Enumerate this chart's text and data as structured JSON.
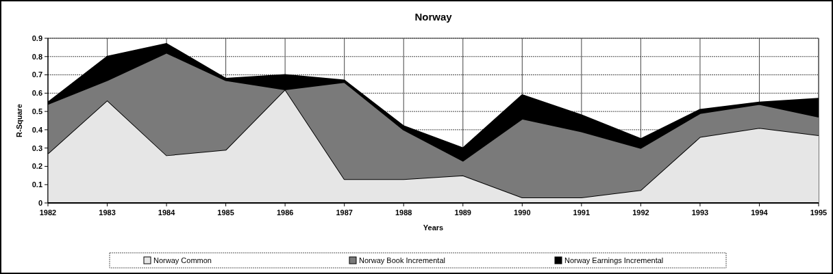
{
  "chart_data": {
    "type": "area",
    "stacked": true,
    "title": "Norway",
    "xlabel": "Years",
    "ylabel": "R-Square",
    "categories": [
      "1982",
      "1983",
      "1984",
      "1985",
      "1986",
      "1987",
      "1988",
      "1989",
      "1990",
      "1991",
      "1992",
      "1993",
      "1994",
      "1995"
    ],
    "series": [
      {
        "name": "Norway Common",
        "color": "#e6e6e6",
        "values": [
          0.27,
          0.56,
          0.26,
          0.29,
          0.62,
          0.13,
          0.13,
          0.15,
          0.03,
          0.03,
          0.07,
          0.36,
          0.41,
          0.37
        ]
      },
      {
        "name": "Norway Book Incremental",
        "color": "#7a7a7a",
        "values": [
          0.27,
          0.11,
          0.56,
          0.38,
          0,
          0.53,
          0.27,
          0.08,
          0.43,
          0.36,
          0.23,
          0.13,
          0.13,
          0.1
        ]
      },
      {
        "name": "Norway Earnings Incremental",
        "color": "#000000",
        "values": [
          0.01,
          0.13,
          0.05,
          0.01,
          0.08,
          0.01,
          0.02,
          0.07,
          0.13,
          0.09,
          0.05,
          0.02,
          0.01,
          0.1
        ]
      }
    ],
    "ylim": [
      0,
      0.9
    ],
    "yticks": [
      0,
      0.1,
      0.2,
      0.3,
      0.4,
      0.5,
      0.6,
      0.7,
      0.8,
      0.9
    ],
    "grid": true,
    "legend": "bottom"
  }
}
